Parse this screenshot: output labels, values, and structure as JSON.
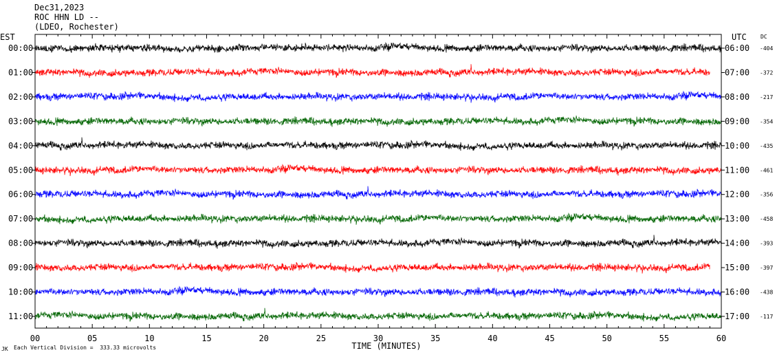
{
  "header": {
    "date": "Dec31,2023",
    "station": "ROC HHN LD --",
    "network": "(LDEO, Rochester)"
  },
  "left_axis_label": "EST",
  "right_axis_label": "UTC",
  "dc_header": "DC",
  "footer": {
    "corner_mark": "JK",
    "scale_note": "Each Vertical Division =  333.33 microvolts"
  },
  "chart_data": {
    "type": "line",
    "xlabel": "TIME (MINUTES)",
    "xlim": [
      0,
      60
    ],
    "x_ticks": [
      0,
      5,
      10,
      15,
      20,
      25,
      30,
      35,
      40,
      45,
      50,
      55,
      60
    ],
    "x_tick_labels": [
      "00",
      "05",
      "10",
      "15",
      "20",
      "25",
      "30",
      "35",
      "40",
      "45",
      "50",
      "55",
      "60"
    ],
    "rows": [
      {
        "est": "00:00",
        "utc": "06:00",
        "dc": "-404",
        "color": "#000000",
        "end_minute": 60
      },
      {
        "est": "01:00",
        "utc": "07:00",
        "dc": "-372",
        "color": "#ff0000",
        "end_minute": 59
      },
      {
        "est": "02:00",
        "utc": "08:00",
        "dc": "-217",
        "color": "#0000ff",
        "end_minute": 60
      },
      {
        "est": "03:00",
        "utc": "09:00",
        "dc": "-354",
        "color": "#006400",
        "end_minute": 60
      },
      {
        "est": "04:00",
        "utc": "10:00",
        "dc": "-435",
        "color": "#000000",
        "end_minute": 60
      },
      {
        "est": "05:00",
        "utc": "11:00",
        "dc": "-461",
        "color": "#ff0000",
        "end_minute": 60
      },
      {
        "est": "06:00",
        "utc": "12:00",
        "dc": "-356",
        "color": "#0000ff",
        "end_minute": 60
      },
      {
        "est": "07:00",
        "utc": "13:00",
        "dc": "-458",
        "color": "#006400",
        "end_minute": 60
      },
      {
        "est": "08:00",
        "utc": "14:00",
        "dc": "-393",
        "color": "#000000",
        "end_minute": 60
      },
      {
        "est": "09:00",
        "utc": "15:00",
        "dc": "-397",
        "color": "#ff0000",
        "end_minute": 59
      },
      {
        "est": "10:00",
        "utc": "16:00",
        "dc": "-438",
        "color": "#0000ff",
        "end_minute": 60
      },
      {
        "est": "11:00",
        "utc": "17:00",
        "dc": "-117",
        "color": "#006400",
        "end_minute": 60
      }
    ]
  }
}
